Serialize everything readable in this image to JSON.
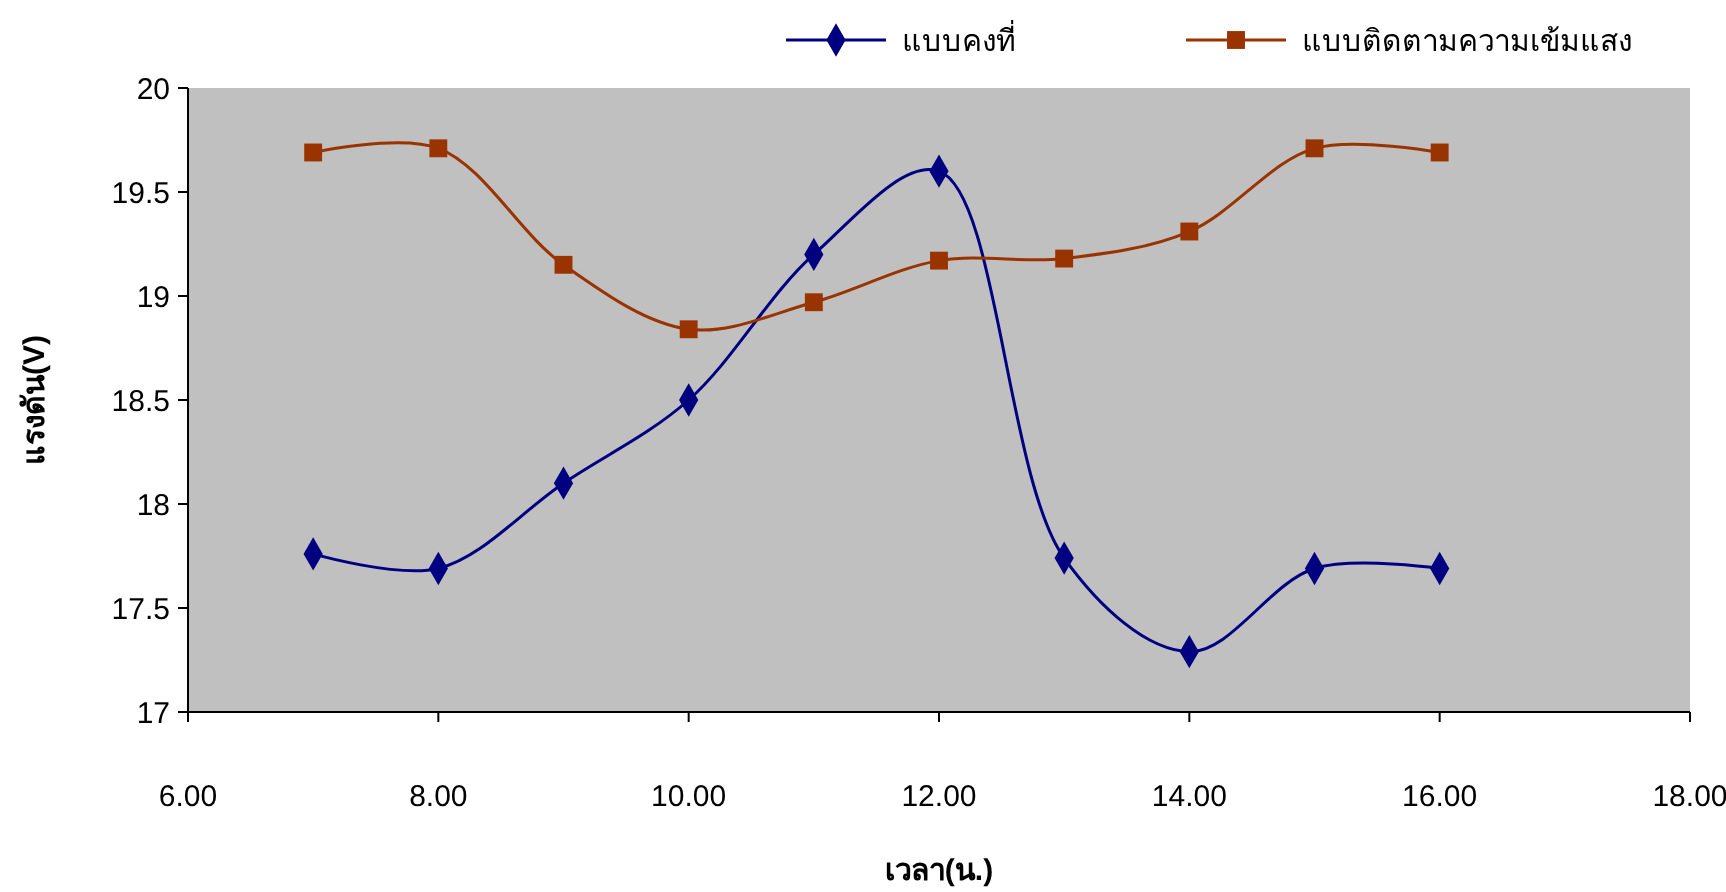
{
  "chart_data": {
    "type": "line",
    "xlabel": "เวลา(น.)",
    "ylabel": "แรงดัน(V)",
    "x": [
      7,
      8,
      9,
      10,
      11,
      12,
      13,
      14,
      15,
      16
    ],
    "xlim": [
      6,
      18
    ],
    "xticks": [
      {
        "value": 6,
        "label": "6.00"
      },
      {
        "value": 8,
        "label": "8.00"
      },
      {
        "value": 10,
        "label": "10.00"
      },
      {
        "value": 12,
        "label": "12.00"
      },
      {
        "value": 14,
        "label": "14.00"
      },
      {
        "value": 16,
        "label": "16.00"
      },
      {
        "value": 18,
        "label": "18.00"
      }
    ],
    "ylim": [
      17,
      20
    ],
    "yticks": [
      17,
      17.5,
      18,
      18.5,
      19,
      19.5,
      20
    ],
    "grid": false,
    "legend": "top right",
    "series": [
      {
        "name": "แบบคงที่",
        "color": "#000080",
        "marker": "diamond",
        "values": [
          17.76,
          17.69,
          18.1,
          18.5,
          19.2,
          19.6,
          17.74,
          17.29,
          17.69,
          17.69
        ]
      },
      {
        "name": "แบบติดตามความเข้มแสง",
        "color": "#993300",
        "marker": "square",
        "values": [
          19.69,
          19.71,
          19.15,
          18.84,
          18.97,
          19.17,
          19.18,
          19.31,
          19.71,
          19.69
        ]
      }
    ]
  }
}
